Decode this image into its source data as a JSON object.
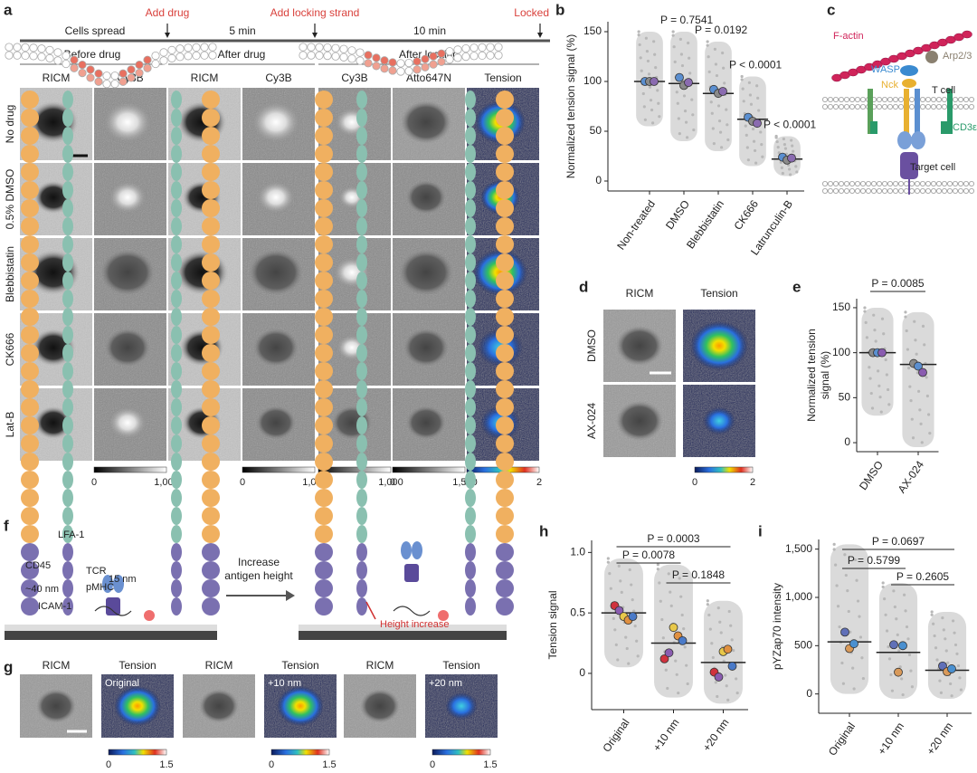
{
  "panel_labels": [
    "a",
    "b",
    "c",
    "d",
    "e",
    "f",
    "g",
    "h",
    "i"
  ],
  "panel_a": {
    "timeline": {
      "phases": [
        "Cells spread",
        "5 min",
        "10 min"
      ],
      "events": [
        "Add drug",
        "Add locking strand",
        "Locked"
      ]
    },
    "groups": [
      "Before drug",
      "After drug",
      "After locking"
    ],
    "columns": [
      "RICM",
      "Cy3B",
      "RICM",
      "Cy3B",
      "Cy3B",
      "Atto647N",
      "Tension"
    ],
    "rows": [
      "No drug",
      "0.5% DMSO",
      "Blebbistatin",
      "CK666",
      "Lat-B"
    ],
    "colorbars": [
      [
        "0",
        "1,000"
      ],
      [
        "0",
        "1,000"
      ],
      [
        "0",
        "1,000"
      ],
      [
        "0",
        "1,500"
      ],
      [
        "0",
        "2"
      ]
    ]
  },
  "panel_c": {
    "labels": [
      "F-actin",
      "Arp2/3",
      "WASP",
      "Nck",
      "T cell",
      "CD3ε",
      "Target cell"
    ]
  },
  "panel_d": {
    "columns": [
      "RICM",
      "Tension"
    ],
    "rows": [
      "DMSO",
      "AX-024"
    ],
    "colorbar": [
      "0",
      "2"
    ]
  },
  "panel_f": {
    "labels": [
      "CD45",
      "LFA-1",
      "TCR",
      "15 nm",
      "pMHC",
      "~40 nm",
      "ICAM-1",
      "Height increase"
    ],
    "arrow_text": [
      "Increase",
      "antigen height"
    ]
  },
  "panel_g": {
    "groups": [
      {
        "ricm": "RICM",
        "tension": "Tension",
        "condition": "Original",
        "colorbar": [
          "0",
          "1.5"
        ]
      },
      {
        "ricm": "RICM",
        "tension": "Tension",
        "condition": "+10 nm",
        "colorbar": [
          "0",
          "1.5"
        ]
      },
      {
        "ricm": "RICM",
        "tension": "Tension",
        "condition": "+20 nm",
        "colorbar": [
          "0",
          "1.5"
        ]
      }
    ]
  },
  "chart_data": [
    {
      "type": "strip",
      "ylabel": "Normalized tension signal (%)",
      "categories": [
        "Non-treated",
        "DMSO",
        "Blebbistatin",
        "CK666",
        "Latrunculin-B"
      ],
      "ylim": [
        -10,
        160
      ],
      "yticks": [
        0,
        50,
        100,
        150
      ],
      "spread": [
        [
          55,
          150
        ],
        [
          40,
          150
        ],
        [
          30,
          140
        ],
        [
          15,
          105
        ],
        [
          5,
          45
        ]
      ],
      "medians": [
        100,
        98,
        88,
        62,
        22
      ],
      "replicate_colors": [
        "#5b8fd0",
        "#8a8a8a",
        "#8a6bb0"
      ],
      "replicates": [
        [
          100,
          100,
          100
        ],
        [
          104,
          96,
          99
        ],
        [
          92,
          88,
          90
        ],
        [
          64,
          60,
          58
        ],
        [
          24,
          21,
          23
        ]
      ],
      "p_labels": [
        null,
        "P = 0.7541",
        "P = 0.0192",
        "P < 0.0001",
        "P < 0.0001"
      ]
    },
    {
      "type": "strip",
      "ylabel": [
        "Normalized tension",
        "signal (%)"
      ],
      "categories": [
        "DMSO",
        "AX-024"
      ],
      "ylim": [
        -10,
        160
      ],
      "yticks": [
        0,
        50,
        100,
        150
      ],
      "spread": [
        [
          30,
          150
        ],
        [
          -5,
          145
        ]
      ],
      "medians": [
        100,
        87
      ],
      "replicate_colors": [
        "#8a8a8a",
        "#5b8fd0",
        "#8a5cb0"
      ],
      "replicates": [
        [
          100,
          100,
          100
        ],
        [
          88,
          85,
          78
        ]
      ],
      "comparisons": [
        "P = 0.0085"
      ]
    },
    {
      "type": "strip",
      "ylabel": "Tension signal",
      "categories": [
        "Original",
        "+10 nm",
        "+20 nm"
      ],
      "ylim": [
        -0.3,
        1.1
      ],
      "yticks": [
        0,
        0.5,
        {
          "value": 1,
          "label": "1.0"
        }
      ],
      "spread": [
        [
          0.05,
          0.95
        ],
        [
          -0.2,
          0.9
        ],
        [
          -0.25,
          0.6
        ]
      ],
      "medians": [
        0.5,
        0.25,
        0.09
      ],
      "replicate_colors": [
        "#d0323e",
        "#8a5cb0",
        "#e8c84a",
        "#e09040",
        "#4a7ac8"
      ],
      "replicates": [
        [
          0.56,
          0.52,
          0.47,
          0.44,
          0.47
        ],
        [
          0.12,
          0.17,
          0.38,
          0.31,
          0.27
        ],
        [
          0.01,
          -0.03,
          0.18,
          0.2,
          0.06
        ]
      ],
      "comparisons": [
        "P = 0.0078",
        "P = 0.1848",
        "P = 0.0003"
      ]
    },
    {
      "type": "strip",
      "ylabel": "pYZap70 intensity",
      "categories": [
        "Original",
        "+10 nm",
        "+20 nm"
      ],
      "ylim": [
        -200,
        1600
      ],
      "yticks": [
        0,
        500,
        {
          "value": 1000,
          "label": "1,000"
        },
        {
          "value": 1500,
          "label": "1,500"
        }
      ],
      "spread": [
        [
          0,
          1550
        ],
        [
          -50,
          1150
        ],
        [
          -50,
          850
        ]
      ],
      "medians": [
        540,
        430,
        245
      ],
      "replicate_colors": [
        "#6070b8",
        "#d99a5a",
        "#4a90d0"
      ],
      "replicates": [
        [
          640,
          470,
          520
        ],
        [
          510,
          225,
          500
        ],
        [
          290,
          230,
          260
        ]
      ],
      "comparisons": [
        "P = 0.5799",
        "P = 0.2605",
        "P = 0.0697"
      ]
    }
  ]
}
